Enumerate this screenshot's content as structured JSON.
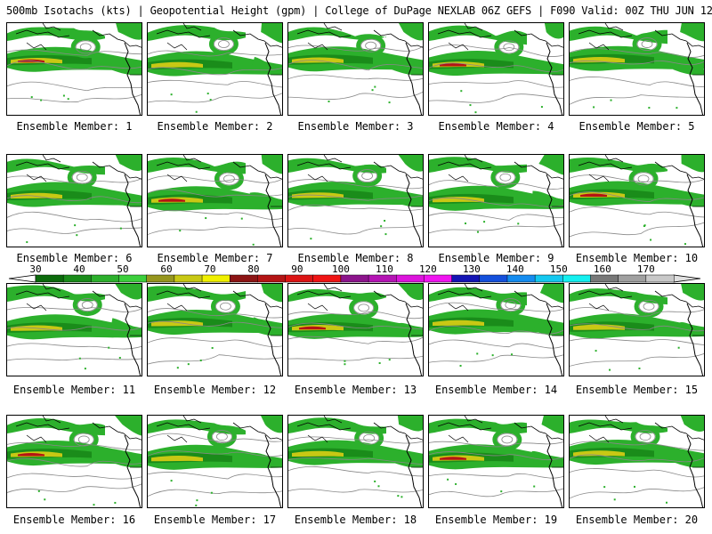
{
  "title": "500mb Isotachs (kts) | Geopotential Height (gpm) | College of DuPage NEXLAB   06Z GEFS | F090 Valid: 00Z THU JUN 12 2025",
  "colorbar": {
    "labels": [
      "30",
      "40",
      "50",
      "60",
      "70",
      "80",
      "90",
      "100",
      "110",
      "120",
      "130",
      "140",
      "150",
      "160",
      "170"
    ],
    "colors": [
      "#0b6b0b",
      "#1a8c1a",
      "#2cb02c",
      "#3ccf3c",
      "#96961e",
      "#c8c814",
      "#f0f000",
      "#8c1414",
      "#b41414",
      "#dc1414",
      "#f01414",
      "#8c148c",
      "#b414b4",
      "#dc14dc",
      "#f014f0",
      "#1414b4",
      "#1450dc",
      "#148cf0",
      "#14c8f0",
      "#14f0f0",
      "#787878",
      "#a0a0a0",
      "#c8c8c8"
    ]
  },
  "members": [
    {
      "label": "Ensemble Member: 1"
    },
    {
      "label": "Ensemble Member: 2"
    },
    {
      "label": "Ensemble Member: 3"
    },
    {
      "label": "Ensemble Member: 4"
    },
    {
      "label": "Ensemble Member: 5"
    },
    {
      "label": "Ensemble Member: 6"
    },
    {
      "label": "Ensemble Member: 7"
    },
    {
      "label": "Ensemble Member: 8"
    },
    {
      "label": "Ensemble Member: 9"
    },
    {
      "label": "Ensemble Member: 10"
    },
    {
      "label": "Ensemble Member: 11"
    },
    {
      "label": "Ensemble Member: 12"
    },
    {
      "label": "Ensemble Member: 13"
    },
    {
      "label": "Ensemble Member: 14"
    },
    {
      "label": "Ensemble Member: 15"
    },
    {
      "label": "Ensemble Member: 16"
    },
    {
      "label": "Ensemble Member: 17"
    },
    {
      "label": "Ensemble Member: 18"
    },
    {
      "label": "Ensemble Member: 19"
    },
    {
      "label": "Ensemble Member: 20"
    }
  ]
}
